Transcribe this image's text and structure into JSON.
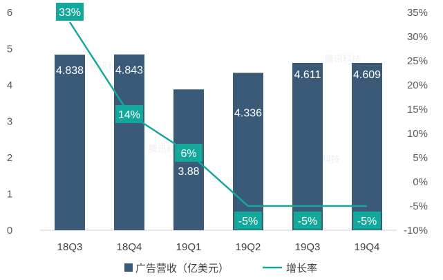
{
  "chart_data": {
    "type": "bar",
    "categories": [
      "18Q3",
      "18Q4",
      "19Q1",
      "19Q2",
      "19Q3",
      "19Q4"
    ],
    "series": [
      {
        "name": "广告营收（亿美元）",
        "type": "bar",
        "axis": "left",
        "values": [
          4.838,
          4.843,
          3.88,
          4.336,
          4.611,
          4.609
        ],
        "labels": [
          "4.838",
          "4.843",
          "3.88",
          "4.336",
          "4.611",
          "4.609"
        ],
        "color": "#3a5a78"
      },
      {
        "name": "增长率",
        "type": "line",
        "axis": "right",
        "values": [
          33,
          14,
          6,
          -5,
          -5,
          -5
        ],
        "labels": [
          "33%",
          "14%",
          "6%",
          "-5%",
          "-5%",
          "-5%"
        ],
        "color": "#14a89c"
      }
    ],
    "y_left": {
      "ylim": [
        0,
        6
      ],
      "ticks": [
        0,
        1,
        2,
        3,
        4,
        5,
        6
      ],
      "tick_labels": [
        "0",
        "1",
        "2",
        "3",
        "4",
        "5",
        "6"
      ]
    },
    "y_right": {
      "ylim": [
        -10,
        35
      ],
      "ticks": [
        -10,
        -5,
        0,
        5,
        10,
        15,
        20,
        25,
        30,
        35
      ],
      "tick_labels": [
        "-10%",
        "-5%",
        "0%",
        "5%",
        "10%",
        "15%",
        "20%",
        "25%",
        "30%",
        "35%"
      ]
    },
    "legend_position": "bottom",
    "grid": false,
    "watermark": "腾讯科技"
  }
}
